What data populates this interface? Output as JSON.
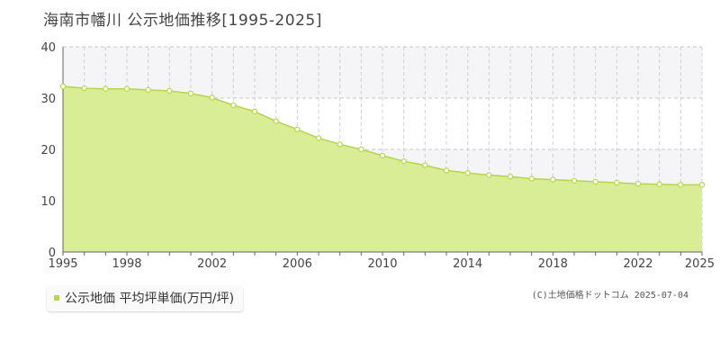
{
  "title": "海南市幡川 公示地価推移[1995-2025]",
  "legend_label": "公示地価 平均坪単価(万円/坪)",
  "credit": "(C)土地価格ドットコム 2025-07-04",
  "colors": {
    "fill": "#d9ec96",
    "line": "#b3d64a",
    "marker": "#b6d84a",
    "band": "#f5f5f7"
  },
  "chart_data": {
    "type": "area",
    "title": "海南市幡川 公示地価推移[1995-2025]",
    "xlabel": "",
    "ylabel": "",
    "xlim": [
      1995,
      2025
    ],
    "ylim": [
      0,
      40
    ],
    "yticks": [
      0,
      10,
      20,
      30,
      40
    ],
    "xticks": [
      1995,
      1998,
      2002,
      2006,
      2010,
      2014,
      2018,
      2022,
      2025
    ],
    "grid": true,
    "legend": "bottom-left",
    "series": [
      {
        "name": "公示地価 平均坪単価(万円/坪)",
        "x": [
          1995,
          1996,
          1997,
          1998,
          1999,
          2000,
          2001,
          2002,
          2003,
          2004,
          2005,
          2006,
          2007,
          2008,
          2009,
          2010,
          2011,
          2012,
          2013,
          2014,
          2015,
          2016,
          2017,
          2018,
          2019,
          2020,
          2021,
          2022,
          2023,
          2024,
          2025
        ],
        "values": [
          32.3,
          31.9,
          31.8,
          31.8,
          31.6,
          31.4,
          30.9,
          30.1,
          28.6,
          27.4,
          25.5,
          23.9,
          22.2,
          21.0,
          20.0,
          18.8,
          17.7,
          16.9,
          15.9,
          15.4,
          15.0,
          14.7,
          14.3,
          14.1,
          13.9,
          13.7,
          13.5,
          13.3,
          13.2,
          13.1,
          13.1
        ]
      }
    ]
  }
}
